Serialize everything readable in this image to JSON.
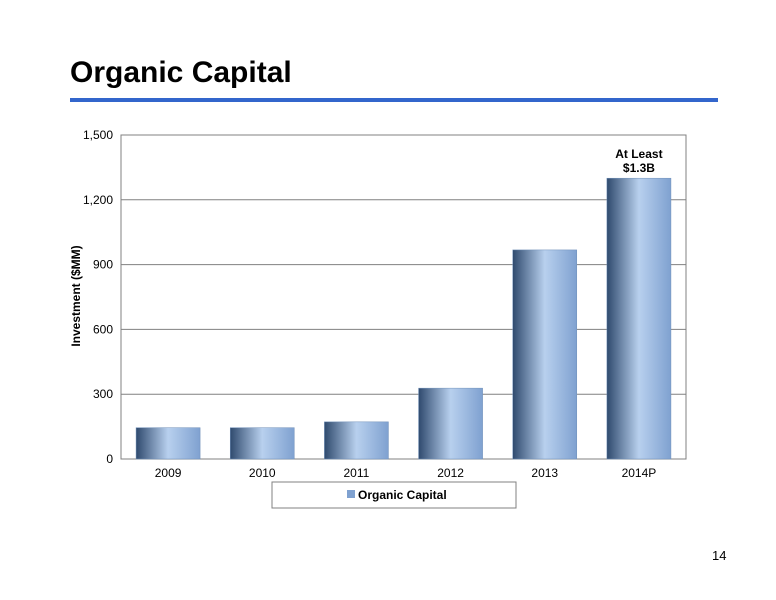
{
  "slide": {
    "title": "Organic Capital",
    "page_number": "14"
  },
  "colors": {
    "title_rule": "#3366CC",
    "bar_light": "#B8D0EE",
    "bar_mid": "#7FA1D0",
    "bar_dark": "#2F4A6E"
  },
  "chart_data": {
    "type": "bar",
    "categories": [
      "2009",
      "2010",
      "2011",
      "2012",
      "2013",
      "2014P"
    ],
    "series": [
      {
        "name": "Organic Capital",
        "values": [
          145,
          145,
          172,
          328,
          968,
          1300
        ]
      }
    ],
    "ylabel": "Investment ($MM)",
    "xlabel": "",
    "ylim": [
      0,
      1500
    ],
    "yticks": [
      0,
      300,
      600,
      900,
      1200,
      1500
    ],
    "ytick_labels": [
      "0",
      "300",
      "600",
      "900",
      "1,200",
      "1,500"
    ],
    "grid": true,
    "legend": "bottom",
    "annotations": [
      {
        "category": "2014P",
        "lines": [
          "At Least",
          "$1.3B"
        ]
      }
    ]
  }
}
